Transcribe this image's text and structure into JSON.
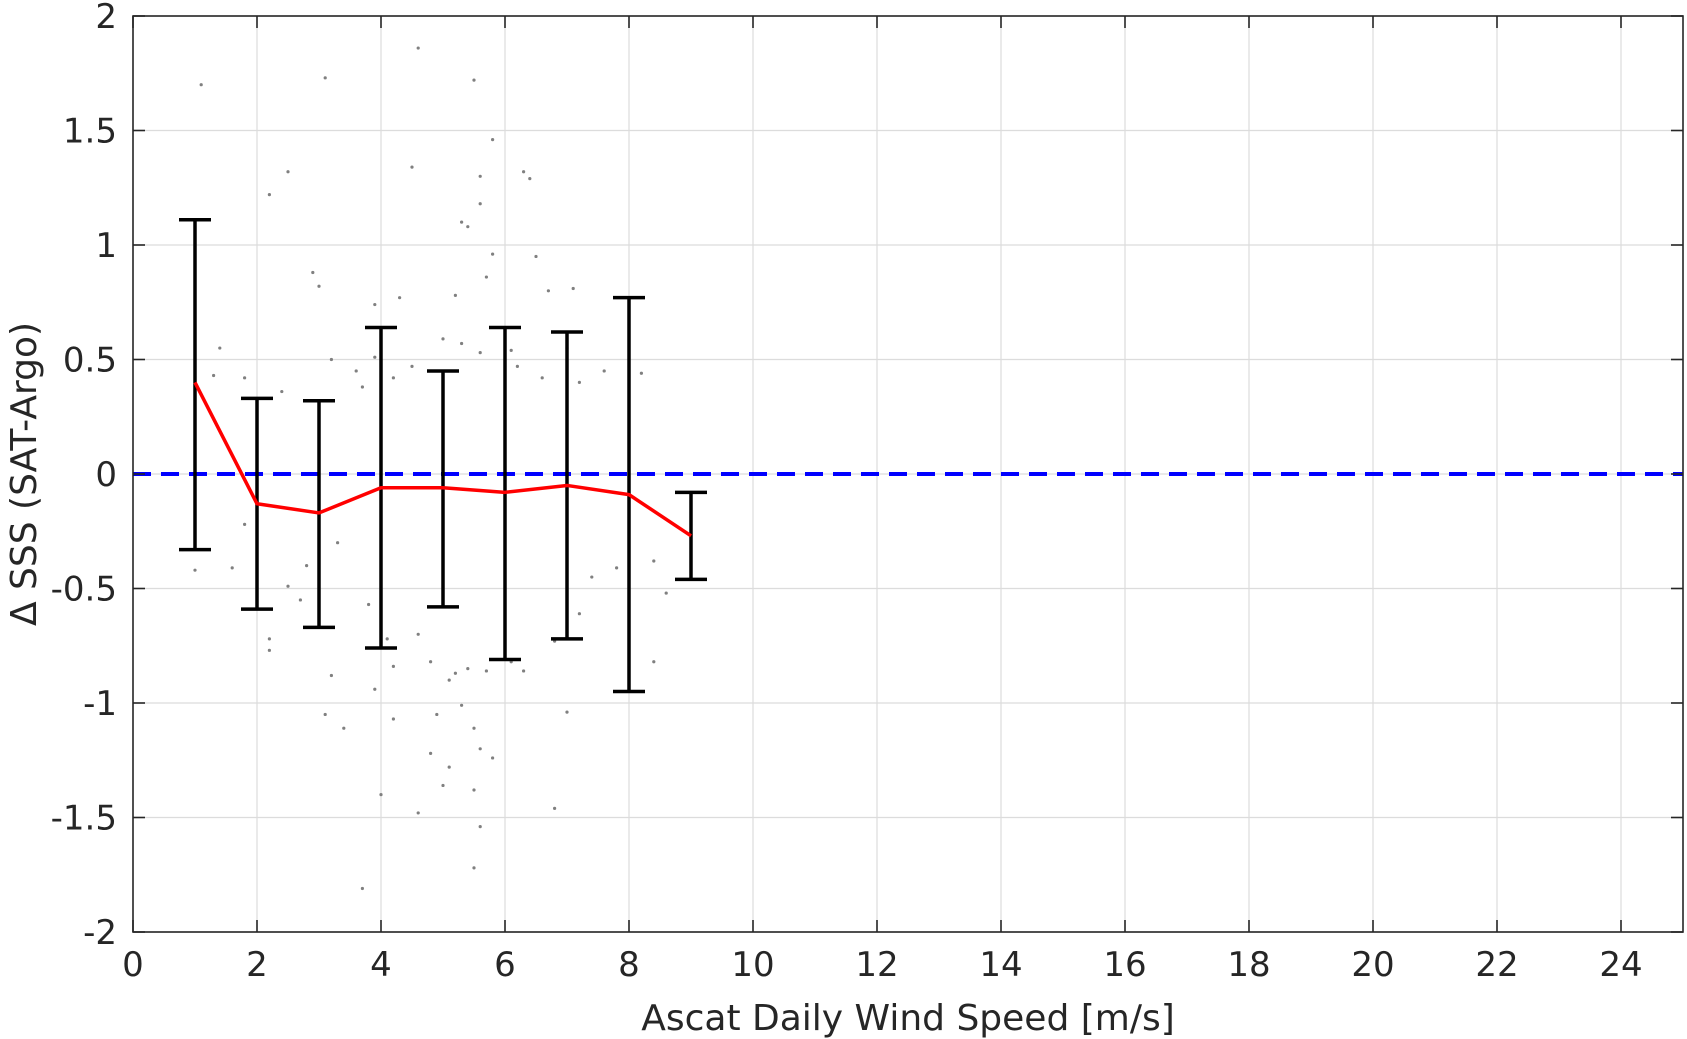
{
  "chart_data": {
    "type": "scatter",
    "title": "",
    "xlabel": "Ascat Daily Wind Speed [m/s]",
    "ylabel": "Δ SSS (SAT-Argo)",
    "xlim": [
      0,
      25
    ],
    "ylim": [
      -2,
      2
    ],
    "grid": true,
    "x_ticks": [
      0,
      2,
      4,
      6,
      8,
      10,
      12,
      14,
      16,
      18,
      20,
      22,
      24
    ],
    "x_tick_labels": [
      "0",
      "2",
      "4",
      "6",
      "8",
      "10",
      "12",
      "14",
      "16",
      "18",
      "20",
      "22",
      "24"
    ],
    "y_ticks": [
      2,
      1.5,
      1,
      0.5,
      0,
      -0.5,
      -1,
      -1.5,
      -2
    ],
    "y_tick_labels": [
      "2",
      "1.5",
      "1",
      "0.5",
      "0",
      "-0.5",
      "-1",
      "-1.5",
      "-2"
    ],
    "series": [
      {
        "kind": "binned-mean-line",
        "color": "#ff0000",
        "x": [
          1,
          2,
          3,
          4,
          5,
          6,
          7,
          8,
          9
        ],
        "y": [
          0.4,
          -0.13,
          -0.17,
          -0.06,
          -0.06,
          -0.08,
          -0.05,
          -0.09,
          -0.27
        ]
      },
      {
        "kind": "errorbars",
        "color": "#000000",
        "x": [
          1,
          2,
          3,
          4,
          5,
          6,
          7,
          8,
          9
        ],
        "upper": [
          1.11,
          0.33,
          0.32,
          0.64,
          0.45,
          0.64,
          0.62,
          0.77,
          -0.08
        ],
        "lower": [
          -0.33,
          -0.59,
          -0.67,
          -0.76,
          -0.58,
          -0.81,
          -0.72,
          -0.95,
          -0.46
        ]
      },
      {
        "kind": "reference-line",
        "color": "#0000ff",
        "style": "dashed",
        "y": 0
      },
      {
        "kind": "scatter-points",
        "color": "#808080",
        "points": [
          [
            1.1,
            1.7
          ],
          [
            3.1,
            1.73
          ],
          [
            4.6,
            1.86
          ],
          [
            5.5,
            1.72
          ],
          [
            5.8,
            1.46
          ],
          [
            2.5,
            1.32
          ],
          [
            4.5,
            1.34
          ],
          [
            6.3,
            1.32
          ],
          [
            6.4,
            1.29
          ],
          [
            2.2,
            1.22
          ],
          [
            5.6,
            1.3
          ],
          [
            5.6,
            1.18
          ],
          [
            5.4,
            1.08
          ],
          [
            5.3,
            1.1
          ],
          [
            6.5,
            0.95
          ],
          [
            5.8,
            0.96
          ],
          [
            2.9,
            0.88
          ],
          [
            3.0,
            0.82
          ],
          [
            4.3,
            0.77
          ],
          [
            3.9,
            0.74
          ],
          [
            5.2,
            0.78
          ],
          [
            5.7,
            0.86
          ],
          [
            6.7,
            0.8
          ],
          [
            7.1,
            0.81
          ],
          [
            1.4,
            0.55
          ],
          [
            1.3,
            0.43
          ],
          [
            1.8,
            0.42
          ],
          [
            2.4,
            0.36
          ],
          [
            3.2,
            0.5
          ],
          [
            3.6,
            0.45
          ],
          [
            3.7,
            0.38
          ],
          [
            3.9,
            0.51
          ],
          [
            4.2,
            0.42
          ],
          [
            4.5,
            0.47
          ],
          [
            5.0,
            0.59
          ],
          [
            5.3,
            0.57
          ],
          [
            5.6,
            0.53
          ],
          [
            6.1,
            0.54
          ],
          [
            6.2,
            0.47
          ],
          [
            6.6,
            0.42
          ],
          [
            7.2,
            0.4
          ],
          [
            7.6,
            0.45
          ],
          [
            8.2,
            0.44
          ],
          [
            7.0,
            0.55
          ],
          [
            3.3,
            -0.3
          ],
          [
            2.8,
            -0.4
          ],
          [
            2.7,
            -0.55
          ],
          [
            2.5,
            -0.49
          ],
          [
            2.2,
            -0.77
          ],
          [
            1.8,
            -0.22
          ],
          [
            1.6,
            -0.41
          ],
          [
            1.0,
            -0.42
          ],
          [
            0.8,
            -0.33
          ],
          [
            3.2,
            -0.88
          ],
          [
            3.8,
            -0.57
          ],
          [
            3.9,
            -0.94
          ],
          [
            4.1,
            -0.72
          ],
          [
            4.2,
            -0.84
          ],
          [
            4.6,
            -0.7
          ],
          [
            4.8,
            -0.82
          ],
          [
            5.1,
            -0.9
          ],
          [
            5.2,
            -0.87
          ],
          [
            5.4,
            -0.85
          ],
          [
            5.7,
            -0.86
          ],
          [
            6.1,
            -0.82
          ],
          [
            6.3,
            -0.86
          ],
          [
            6.8,
            -0.73
          ],
          [
            7.2,
            -0.61
          ],
          [
            7.4,
            -0.45
          ],
          [
            7.8,
            -0.41
          ],
          [
            8.4,
            -0.38
          ],
          [
            8.6,
            -0.52
          ],
          [
            8.4,
            -0.82
          ],
          [
            3.1,
            -1.05
          ],
          [
            3.4,
            -1.11
          ],
          [
            4.2,
            -1.07
          ],
          [
            4.9,
            -1.05
          ],
          [
            5.3,
            -1.01
          ],
          [
            5.5,
            -1.11
          ],
          [
            7.0,
            -1.04
          ],
          [
            4.0,
            -1.4
          ],
          [
            4.6,
            -1.48
          ],
          [
            5.0,
            -1.36
          ],
          [
            5.1,
            -1.28
          ],
          [
            5.6,
            -1.2
          ],
          [
            5.8,
            -1.24
          ],
          [
            5.5,
            -1.38
          ],
          [
            6.8,
            -1.46
          ],
          [
            5.6,
            -1.54
          ],
          [
            5.5,
            -1.72
          ],
          [
            3.7,
            -1.81
          ],
          [
            4.8,
            -1.22
          ],
          [
            2.2,
            -0.72
          ]
        ]
      }
    ]
  }
}
